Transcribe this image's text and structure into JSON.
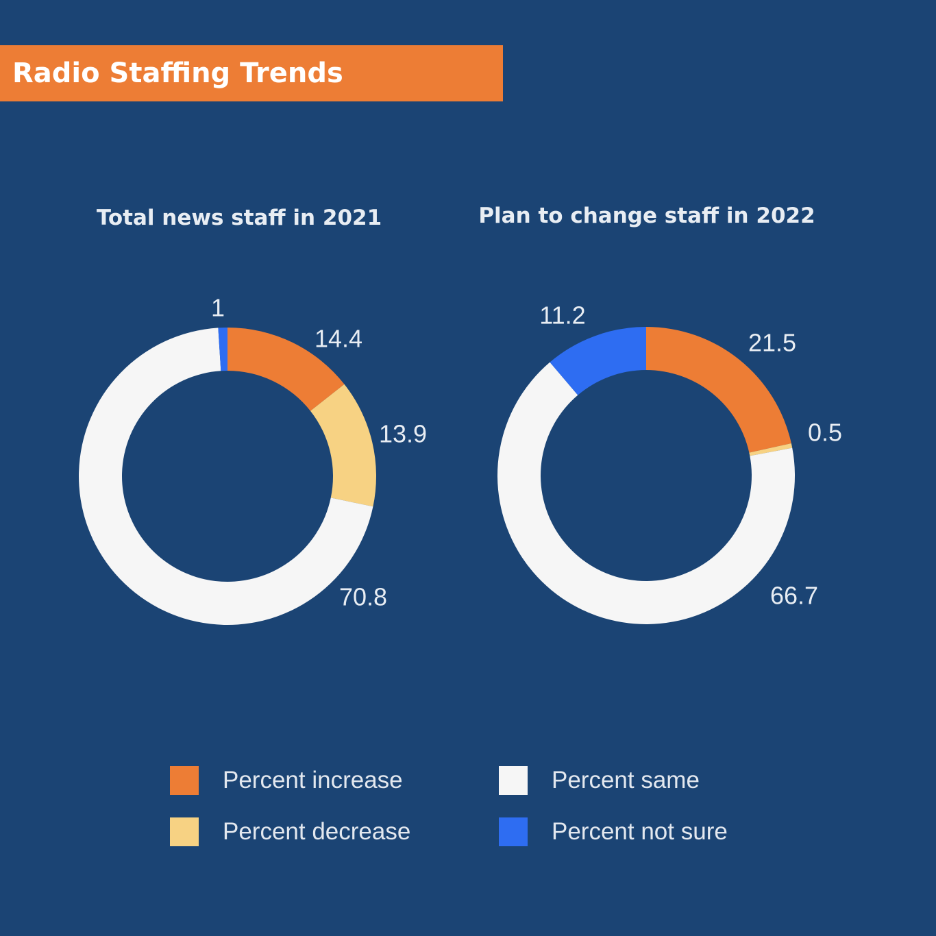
{
  "header": {
    "title": "Radio Staffing Trends"
  },
  "colors": {
    "background": "#1b4474",
    "increase": "#ed7d35",
    "decrease": "#f7d283",
    "same": "#f6f6f6",
    "not_sure": "#2e6df2"
  },
  "legend": [
    {
      "label": "Percent increase",
      "color": "#ed7d35"
    },
    {
      "label": "Percent decrease",
      "color": "#f7d283"
    },
    {
      "label": "Percent same",
      "color": "#f6f6f6"
    },
    {
      "label": "Percent not sure",
      "color": "#2e6df2"
    }
  ],
  "chart_data": [
    {
      "type": "pie",
      "title": "Total news staff in 2021",
      "categories": [
        "Percent increase",
        "Percent decrease",
        "Percent same",
        "Percent not sure"
      ],
      "values": [
        14.4,
        13.9,
        70.8,
        1
      ],
      "labels": [
        "14.4",
        "13.9",
        "70.8",
        "1"
      ],
      "colors": [
        "#ed7d35",
        "#f7d283",
        "#f6f6f6",
        "#2e6df2"
      ]
    },
    {
      "type": "pie",
      "title": "Plan to change staff in 2022",
      "categories": [
        "Percent increase",
        "Percent decrease",
        "Percent same",
        "Percent not sure"
      ],
      "values": [
        21.5,
        0.5,
        66.7,
        11.2
      ],
      "labels": [
        "21.5",
        "0.5",
        "66.7",
        "11.2"
      ],
      "colors": [
        "#ed7d35",
        "#f7d283",
        "#f6f6f6",
        "#2e6df2"
      ]
    }
  ]
}
